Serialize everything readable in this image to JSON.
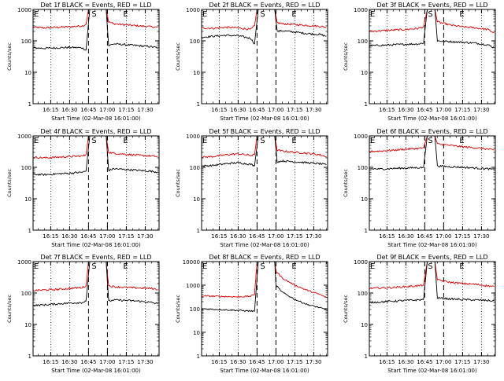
{
  "figure": {
    "y_axis_label": "Counts/sec",
    "x_axis_label": "Start Time (02-Mar-08 16:01:00)",
    "legend_text": "BLACK = Events, RED = LLD",
    "markers": {
      "start": "S",
      "end": "E"
    },
    "colors": {
      "events": "#000000",
      "lld": "#dd0000"
    }
  },
  "chart_data": [
    {
      "type": "line",
      "title": "Det 1f BLACK = Events, RED = LLD",
      "xlabel": "Start Time (02-Mar-08 16:01:00)",
      "ylabel": "Counts/sec",
      "xlim": [
        "16:01",
        "17:41"
      ],
      "ylim": [
        1,
        1000
      ],
      "yscale": "log",
      "y_ticks": [
        "1",
        "10",
        "100",
        "1000"
      ],
      "x_ticks": [
        "16:15",
        "16:30",
        "16:45",
        "17:00",
        "17:15",
        "17:30"
      ],
      "dotted_lines": [
        "16:15",
        "16:30",
        "17:15",
        "17:30"
      ],
      "dashed_lines": [
        "16:45",
        "17:00"
      ],
      "series": [
        {
          "name": "Events",
          "x": [
            "16:01",
            "16:10",
            "16:20",
            "16:30",
            "16:40",
            "16:43",
            "16:46",
            "16:59",
            "17:01",
            "17:05",
            "17:15",
            "17:25",
            "17:35",
            "17:40"
          ],
          "y": [
            60,
            58,
            60,
            62,
            60,
            50,
            1000,
            1000,
            70,
            80,
            75,
            70,
            65,
            60
          ]
        },
        {
          "name": "LLD",
          "x": [
            "16:01",
            "16:10",
            "16:20",
            "16:30",
            "16:40",
            "16:43",
            "16:45",
            "16:59",
            "17:01",
            "17:05",
            "17:15",
            "17:25",
            "17:35",
            "17:40"
          ],
          "y": [
            270,
            260,
            270,
            280,
            300,
            330,
            1000,
            1000,
            400,
            350,
            320,
            300,
            280,
            270
          ]
        }
      ]
    },
    {
      "type": "line",
      "title": "Det 2f BLACK = Events, RED = LLD",
      "xlabel": "Start Time (02-Mar-08 16:01:00)",
      "ylabel": "Counts/sec",
      "xlim": [
        "16:01",
        "17:41"
      ],
      "ylim": [
        1,
        1000
      ],
      "yscale": "log",
      "y_ticks": [
        "1",
        "10",
        "100",
        "1000"
      ],
      "x_ticks": [
        "16:15",
        "16:30",
        "16:45",
        "17:00",
        "17:15",
        "17:30"
      ],
      "dotted_lines": [
        "16:15",
        "16:30",
        "17:15",
        "17:30"
      ],
      "dashed_lines": [
        "16:45",
        "17:00"
      ],
      "series": [
        {
          "name": "Events",
          "x": [
            "16:01",
            "16:10",
            "16:20",
            "16:30",
            "16:40",
            "16:43",
            "16:46",
            "16:59",
            "17:01",
            "17:05",
            "17:15",
            "17:25",
            "17:35",
            "17:40"
          ],
          "y": [
            130,
            140,
            150,
            145,
            120,
            80,
            1000,
            1000,
            200,
            210,
            190,
            170,
            160,
            140
          ]
        },
        {
          "name": "LLD",
          "x": [
            "16:01",
            "16:10",
            "16:20",
            "16:30",
            "16:40",
            "16:43",
            "16:45",
            "16:59",
            "17:01",
            "17:05",
            "17:15",
            "17:25",
            "17:35",
            "17:40"
          ],
          "y": [
            260,
            250,
            270,
            260,
            230,
            300,
            1000,
            1000,
            380,
            350,
            330,
            310,
            290,
            270
          ]
        }
      ]
    },
    {
      "type": "line",
      "title": "Det 3f BLACK = Events, RED = LLD",
      "xlabel": "Start Time (02-Mar-08 16:01:00)",
      "ylabel": "Counts/sec",
      "xlim": [
        "16:01",
        "17:41"
      ],
      "ylim": [
        1,
        1000
      ],
      "yscale": "log",
      "y_ticks": [
        "1",
        "10",
        "100",
        "1000"
      ],
      "x_ticks": [
        "16:15",
        "16:30",
        "16:45",
        "17:00",
        "17:15",
        "17:30"
      ],
      "dotted_lines": [
        "16:15",
        "16:30",
        "17:15",
        "17:30"
      ],
      "dashed_lines": [
        "16:45",
        "17:00"
      ],
      "series": [
        {
          "name": "Events",
          "x": [
            "16:01",
            "16:10",
            "16:20",
            "16:30",
            "16:40",
            "16:44",
            "16:47",
            "16:53",
            "16:55",
            "17:05",
            "17:15",
            "17:25",
            "17:35",
            "17:40"
          ],
          "y": [
            70,
            72,
            75,
            78,
            80,
            85,
            1000,
            1000,
            100,
            95,
            90,
            85,
            75,
            60
          ]
        },
        {
          "name": "LLD",
          "x": [
            "16:01",
            "16:10",
            "16:20",
            "16:30",
            "16:40",
            "16:44",
            "16:47",
            "16:53",
            "16:55",
            "17:05",
            "17:15",
            "17:25",
            "17:35",
            "17:40"
          ],
          "y": [
            200,
            210,
            220,
            230,
            250,
            280,
            1000,
            1000,
            400,
            320,
            280,
            260,
            230,
            180
          ]
        }
      ]
    },
    {
      "type": "line",
      "title": "Det 4f BLACK = Events, RED = LLD",
      "xlabel": "Start Time (02-Mar-08 16:01:00)",
      "ylabel": "Counts/sec",
      "xlim": [
        "16:01",
        "17:41"
      ],
      "ylim": [
        1,
        1000
      ],
      "yscale": "log",
      "y_ticks": [
        "1",
        "10",
        "100",
        "1000"
      ],
      "x_ticks": [
        "16:15",
        "16:30",
        "16:45",
        "17:00",
        "17:15",
        "17:30"
      ],
      "dotted_lines": [
        "16:15",
        "16:30",
        "17:15",
        "17:30"
      ],
      "dashed_lines": [
        "16:45",
        "17:00"
      ],
      "series": [
        {
          "name": "Events",
          "x": [
            "16:01",
            "16:10",
            "16:20",
            "16:30",
            "16:40",
            "16:43",
            "16:46",
            "16:59",
            "17:01",
            "17:05",
            "17:15",
            "17:25",
            "17:35",
            "17:40"
          ],
          "y": [
            60,
            58,
            62,
            65,
            70,
            75,
            1000,
            1000,
            80,
            90,
            85,
            80,
            75,
            70
          ]
        },
        {
          "name": "LLD",
          "x": [
            "16:01",
            "16:10",
            "16:20",
            "16:30",
            "16:40",
            "16:43",
            "16:45",
            "16:59",
            "17:01",
            "17:05",
            "17:15",
            "17:25",
            "17:35",
            "17:40"
          ],
          "y": [
            210,
            200,
            210,
            220,
            230,
            250,
            1000,
            1000,
            300,
            280,
            260,
            240,
            230,
            220
          ]
        }
      ]
    },
    {
      "type": "line",
      "title": "Det 5f BLACK = Events, RED = LLD",
      "xlabel": "Start Time (02-Mar-08 16:01:00)",
      "ylabel": "Counts/sec",
      "xlim": [
        "16:01",
        "17:41"
      ],
      "ylim": [
        1,
        1000
      ],
      "yscale": "log",
      "y_ticks": [
        "1",
        "10",
        "100",
        "1000"
      ],
      "x_ticks": [
        "16:15",
        "16:30",
        "16:45",
        "17:00",
        "17:15",
        "17:30"
      ],
      "dotted_lines": [
        "16:15",
        "16:30",
        "17:15",
        "17:30"
      ],
      "dashed_lines": [
        "16:45",
        "17:00"
      ],
      "series": [
        {
          "name": "Events",
          "x": [
            "16:01",
            "16:10",
            "16:20",
            "16:30",
            "16:40",
            "16:43",
            "16:46",
            "16:59",
            "17:01",
            "17:05",
            "17:15",
            "17:25",
            "17:35",
            "17:40"
          ],
          "y": [
            110,
            115,
            130,
            140,
            125,
            110,
            1000,
            1000,
            150,
            160,
            150,
            140,
            130,
            120
          ]
        },
        {
          "name": "LLD",
          "x": [
            "16:01",
            "16:10",
            "16:20",
            "16:30",
            "16:40",
            "16:43",
            "16:45",
            "16:59",
            "17:01",
            "17:05",
            "17:15",
            "17:25",
            "17:35",
            "17:40"
          ],
          "y": [
            210,
            220,
            250,
            270,
            240,
            250,
            1000,
            1000,
            350,
            330,
            300,
            280,
            250,
            220
          ]
        }
      ]
    },
    {
      "type": "line",
      "title": "Det 6f BLACK = Events, RED = LLD",
      "xlabel": "Start Time (02-Mar-08 16:01:00)",
      "ylabel": "Counts/sec",
      "xlim": [
        "16:01",
        "17:41"
      ],
      "ylim": [
        1,
        1000
      ],
      "yscale": "log",
      "y_ticks": [
        "1",
        "10",
        "100",
        "1000"
      ],
      "x_ticks": [
        "16:15",
        "16:30",
        "16:45",
        "17:00",
        "17:15",
        "17:30"
      ],
      "dotted_lines": [
        "16:15",
        "16:30",
        "17:15",
        "17:30"
      ],
      "dashed_lines": [
        "16:45",
        "17:00"
      ],
      "series": [
        {
          "name": "Events",
          "x": [
            "16:01",
            "16:10",
            "16:20",
            "16:30",
            "16:40",
            "16:44",
            "16:47",
            "16:53",
            "16:55",
            "17:05",
            "17:15",
            "17:25",
            "17:35",
            "17:40"
          ],
          "y": [
            90,
            88,
            92,
            95,
            98,
            100,
            1000,
            1000,
            110,
            105,
            100,
            95,
            90,
            85
          ]
        },
        {
          "name": "LLD",
          "x": [
            "16:01",
            "16:10",
            "16:20",
            "16:30",
            "16:40",
            "16:44",
            "16:47",
            "16:53",
            "16:55",
            "17:05",
            "17:15",
            "17:25",
            "17:35",
            "17:40"
          ],
          "y": [
            320,
            330,
            350,
            380,
            400,
            420,
            1000,
            1000,
            550,
            500,
            450,
            420,
            380,
            350
          ]
        }
      ]
    },
    {
      "type": "line",
      "title": "Det 7f BLACK = Events, RED = LLD",
      "xlabel": "Start Time (02-Mar-08 16:01:00)",
      "ylabel": "Counts/sec",
      "xlim": [
        "16:01",
        "17:41"
      ],
      "ylim": [
        1,
        1000
      ],
      "yscale": "log",
      "y_ticks": [
        "1",
        "10",
        "100",
        "1000"
      ],
      "x_ticks": [
        "16:15",
        "16:30",
        "16:45",
        "17:00",
        "17:15",
        "17:30"
      ],
      "dotted_lines": [
        "16:15",
        "16:30",
        "17:15",
        "17:30"
      ],
      "dashed_lines": [
        "16:45",
        "17:00"
      ],
      "series": [
        {
          "name": "Events",
          "x": [
            "16:01",
            "16:10",
            "16:20",
            "16:30",
            "16:40",
            "16:43",
            "16:46",
            "16:59",
            "17:01",
            "17:05",
            "17:15",
            "17:25",
            "17:35",
            "17:40"
          ],
          "y": [
            40,
            42,
            45,
            48,
            50,
            55,
            1000,
            1000,
            55,
            60,
            58,
            55,
            50,
            45
          ]
        },
        {
          "name": "LLD",
          "x": [
            "16:01",
            "16:10",
            "16:20",
            "16:30",
            "16:40",
            "16:43",
            "16:45",
            "16:59",
            "17:01",
            "17:05",
            "17:15",
            "17:25",
            "17:35",
            "17:40"
          ],
          "y": [
            120,
            125,
            130,
            140,
            150,
            170,
            1000,
            1000,
            170,
            160,
            150,
            145,
            140,
            130
          ]
        }
      ]
    },
    {
      "type": "line",
      "title": "Det 8f BLACK = Events, RED = LLD",
      "xlabel": "Start Time (02-Mar-08 16:01:00)",
      "ylabel": "Counts/sec",
      "xlim": [
        "16:01",
        "17:41"
      ],
      "ylim": [
        1,
        10000
      ],
      "yscale": "log",
      "y_ticks": [
        "1",
        "10",
        "100",
        "1000",
        "10000"
      ],
      "x_ticks": [
        "16:15",
        "16:30",
        "16:45",
        "17:00",
        "17:15",
        "17:30"
      ],
      "dotted_lines": [
        "16:15",
        "16:30",
        "17:15",
        "17:30"
      ],
      "dashed_lines": [
        "16:45",
        "17:00"
      ],
      "series": [
        {
          "name": "Events",
          "x": [
            "16:01",
            "16:10",
            "16:20",
            "16:30",
            "16:40",
            "16:43",
            "16:46",
            "16:59",
            "17:00",
            "17:05",
            "17:15",
            "17:25",
            "17:35",
            "17:40"
          ],
          "y": [
            100,
            95,
            90,
            85,
            80,
            78,
            10000,
            10000,
            1000,
            500,
            250,
            150,
            110,
            90
          ]
        },
        {
          "name": "LLD",
          "x": [
            "16:01",
            "16:10",
            "16:20",
            "16:30",
            "16:40",
            "16:43",
            "16:45",
            "16:59",
            "17:00",
            "17:05",
            "17:15",
            "17:25",
            "17:35",
            "17:40"
          ],
          "y": [
            350,
            340,
            330,
            320,
            340,
            400,
            10000,
            10000,
            4000,
            2000,
            1000,
            600,
            400,
            300
          ]
        }
      ]
    },
    {
      "type": "line",
      "title": "Det 9f BLACK = Events, RED = LLD",
      "xlabel": "Start Time (02-Mar-08 16:01:00)",
      "ylabel": "Counts/sec",
      "xlim": [
        "16:01",
        "17:41"
      ],
      "ylim": [
        1,
        1000
      ],
      "yscale": "log",
      "y_ticks": [
        "1",
        "10",
        "100",
        "1000"
      ],
      "x_ticks": [
        "16:15",
        "16:30",
        "16:45",
        "17:00",
        "17:15",
        "17:30"
      ],
      "dotted_lines": [
        "16:15",
        "16:30",
        "17:15",
        "17:30"
      ],
      "dashed_lines": [
        "16:45",
        "17:00"
      ],
      "series": [
        {
          "name": "Events",
          "x": [
            "16:01",
            "16:10",
            "16:20",
            "16:30",
            "16:40",
            "16:44",
            "16:47",
            "16:53",
            "16:55",
            "17:05",
            "17:15",
            "17:25",
            "17:35",
            "17:40"
          ],
          "y": [
            50,
            52,
            55,
            58,
            60,
            62,
            1000,
            1000,
            70,
            65,
            62,
            60,
            58,
            55
          ]
        },
        {
          "name": "LLD",
          "x": [
            "16:01",
            "16:10",
            "16:20",
            "16:30",
            "16:40",
            "16:44",
            "16:47",
            "16:53",
            "16:55",
            "17:05",
            "17:15",
            "17:25",
            "17:35",
            "17:40"
          ],
          "y": [
            140,
            145,
            150,
            160,
            170,
            180,
            1000,
            1000,
            260,
            220,
            200,
            190,
            170,
            160
          ]
        }
      ]
    }
  ]
}
